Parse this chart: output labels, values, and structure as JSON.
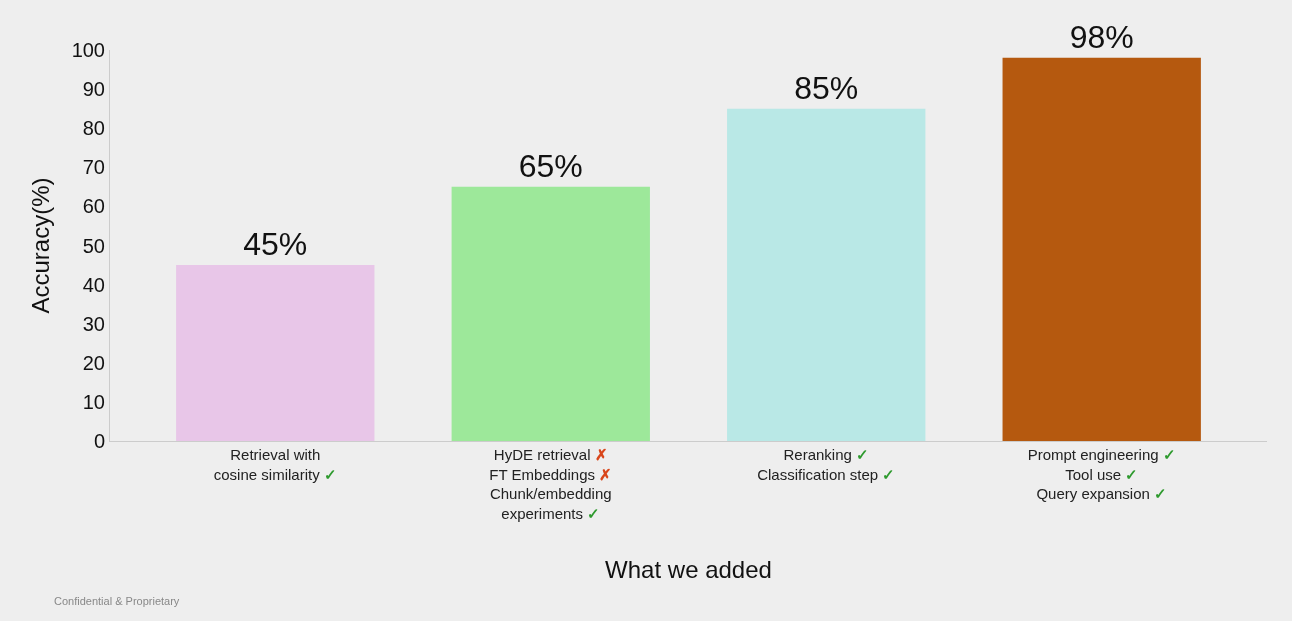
{
  "chart_data": {
    "type": "bar",
    "categories": [
      "Retrieval with\ncosine similarity ✓",
      "HyDE retrieval ✗\nFT Embeddings ✗\nChunk/embedding\nexperiments ✓",
      "Reranking ✓\nClassification step ✓",
      "Prompt engineering ✓\nTool use ✓\nQuery expansion ✓"
    ],
    "values": [
      45,
      65,
      85,
      98
    ],
    "colors": [
      "#e8c6e8",
      "#9de89a",
      "#b9e8e6",
      "#b5590f"
    ],
    "value_labels": [
      "45%",
      "65%",
      "85%",
      "98%"
    ],
    "xlabel": "What we added",
    "ylabel": "Accuracy(%)",
    "ylim": [
      0,
      100
    ],
    "yticks": [
      0,
      10,
      20,
      30,
      40,
      50,
      60,
      70,
      80,
      90,
      100
    ],
    "grid": false,
    "legend": false,
    "annotations": [
      "Confidential & Proprietary"
    ]
  }
}
